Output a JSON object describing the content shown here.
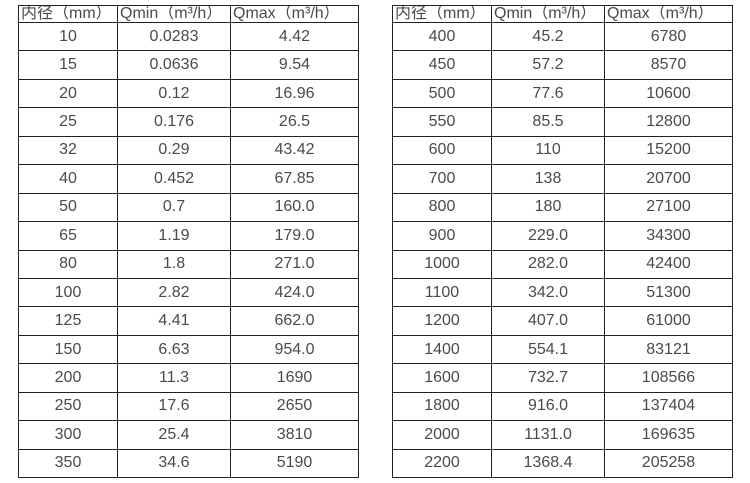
{
  "page": {
    "background_color": "#ffffff",
    "text_color": "#4a4a4a",
    "border_color": "#222222"
  },
  "tables": [
    {
      "name": "flow-table-small-diameters",
      "headers": [
        "内径（mm）",
        "Qmin（m³/h）",
        "Qmax（m³/h）"
      ],
      "rows": [
        [
          "10",
          "0.0283",
          "4.42"
        ],
        [
          "15",
          "0.0636",
          "9.54"
        ],
        [
          "20",
          "0.12",
          "16.96"
        ],
        [
          "25",
          "0.176",
          "26.5"
        ],
        [
          "32",
          "0.29",
          "43.42"
        ],
        [
          "40",
          "0.452",
          "67.85"
        ],
        [
          "50",
          "0.7",
          "160.0"
        ],
        [
          "65",
          "1.19",
          "179.0"
        ],
        [
          "80",
          "1.8",
          "271.0"
        ],
        [
          "100",
          "2.82",
          "424.0"
        ],
        [
          "125",
          "4.41",
          "662.0"
        ],
        [
          "150",
          "6.63",
          "954.0"
        ],
        [
          "200",
          "11.3",
          "1690"
        ],
        [
          "250",
          "17.6",
          "2650"
        ],
        [
          "300",
          "25.4",
          "3810"
        ],
        [
          "350",
          "34.6",
          "5190"
        ]
      ]
    },
    {
      "name": "flow-table-large-diameters",
      "headers": [
        "内径（mm）",
        "Qmin（m³/h）",
        "Qmax（m³/h）"
      ],
      "rows": [
        [
          "400",
          "45.2",
          "6780"
        ],
        [
          "450",
          "57.2",
          "8570"
        ],
        [
          "500",
          "77.6",
          "10600"
        ],
        [
          "550",
          "85.5",
          "12800"
        ],
        [
          "600",
          "110",
          "15200"
        ],
        [
          "700",
          "138",
          "20700"
        ],
        [
          "800",
          "180",
          "27100"
        ],
        [
          "900",
          "229.0",
          "34300"
        ],
        [
          "1000",
          "282.0",
          "42400"
        ],
        [
          "1100",
          "342.0",
          "51300"
        ],
        [
          "1200",
          "407.0",
          "61000"
        ],
        [
          "1400",
          "554.1",
          "83121"
        ],
        [
          "1600",
          "732.7",
          "108566"
        ],
        [
          "1800",
          "916.0",
          "137404"
        ],
        [
          "2000",
          "1131.0",
          "169635"
        ],
        [
          "2200",
          "1368.4",
          "205258"
        ]
      ]
    }
  ]
}
